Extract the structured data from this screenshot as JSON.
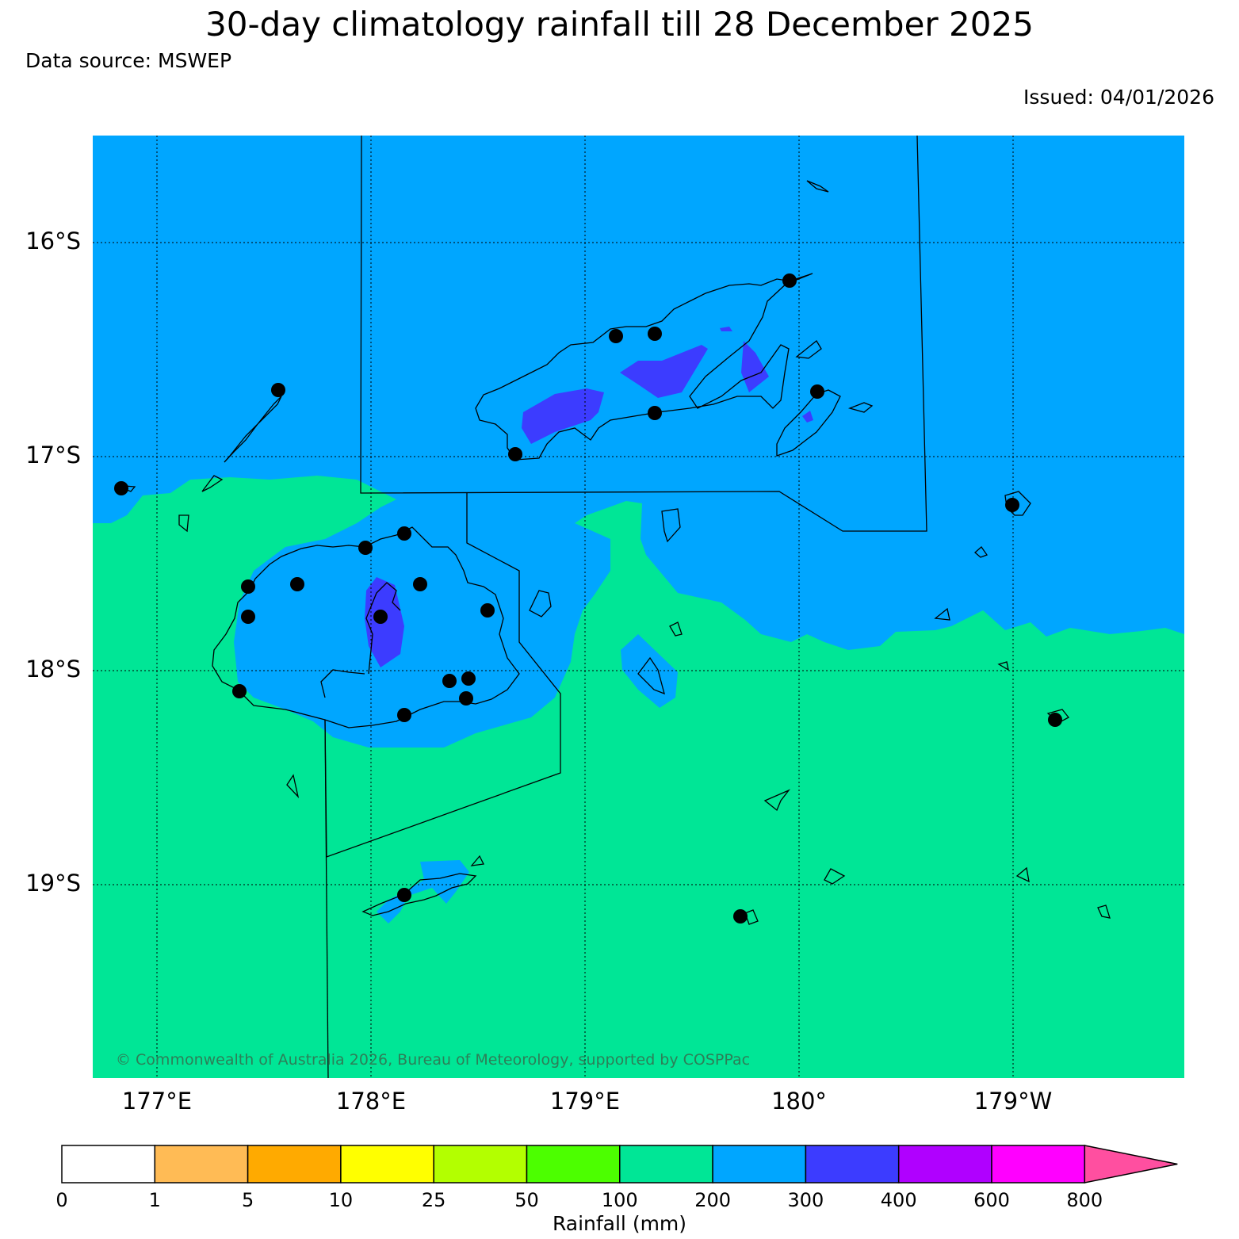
{
  "header": {
    "title": "30-day climatology rainfall till 28 December 2025",
    "source": "Data source: MSWEP",
    "issued": "Issued: 04/01/2026"
  },
  "axes": {
    "lat_labels": [
      "16°S",
      "17°S",
      "18°S",
      "19°S"
    ],
    "lon_labels": [
      "177°E",
      "178°E",
      "179°E",
      "180°",
      "179°W"
    ]
  },
  "copyright": "© Commonwealth of Australia 2026, Bureau of Meteorology, supported by COSPPac",
  "colorbar": {
    "title": "Rainfall (mm)",
    "ticks": [
      "0",
      "1",
      "5",
      "10",
      "25",
      "50",
      "100",
      "200",
      "300",
      "400",
      "600",
      "800"
    ],
    "colors": [
      "#ffffff",
      "#ffbb55",
      "#ffaa00",
      "#ffff00",
      "#b3ff00",
      "#4cff00",
      "#00e696",
      "#00a6ff",
      "#3c3cff",
      "#b000ff",
      "#ff00ff",
      "#ff4fa0"
    ]
  },
  "map_colors": {
    "band_100_200": "#00e696",
    "band_200_300": "#00a6ff",
    "band_300_400": "#3c3cff"
  }
}
